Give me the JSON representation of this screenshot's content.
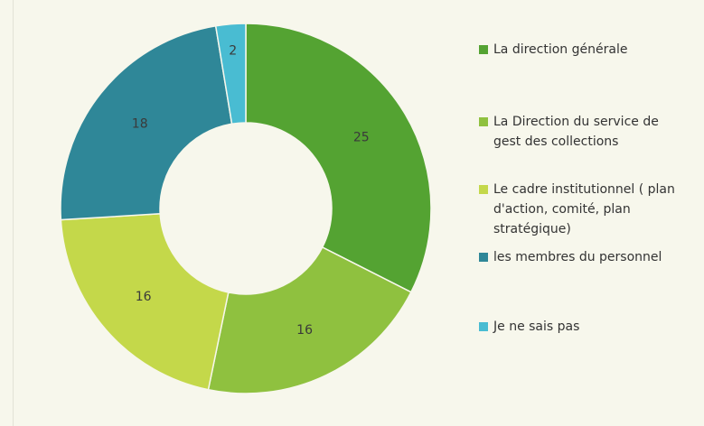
{
  "chart_data": {
    "type": "donut",
    "categories": [
      "La direction générale",
      "La Direction du service de gest des collections",
      "Le cadre institutionnel ( plan d'action, comité, plan stratégique)",
      "les membres du personnel",
      "Je ne sais pas"
    ],
    "values": [
      25,
      16,
      16,
      18,
      2
    ],
    "colors": [
      "#54a332",
      "#8fc13f",
      "#c4d84a",
      "#2f8798",
      "#49bcd2"
    ],
    "legend": "right"
  }
}
